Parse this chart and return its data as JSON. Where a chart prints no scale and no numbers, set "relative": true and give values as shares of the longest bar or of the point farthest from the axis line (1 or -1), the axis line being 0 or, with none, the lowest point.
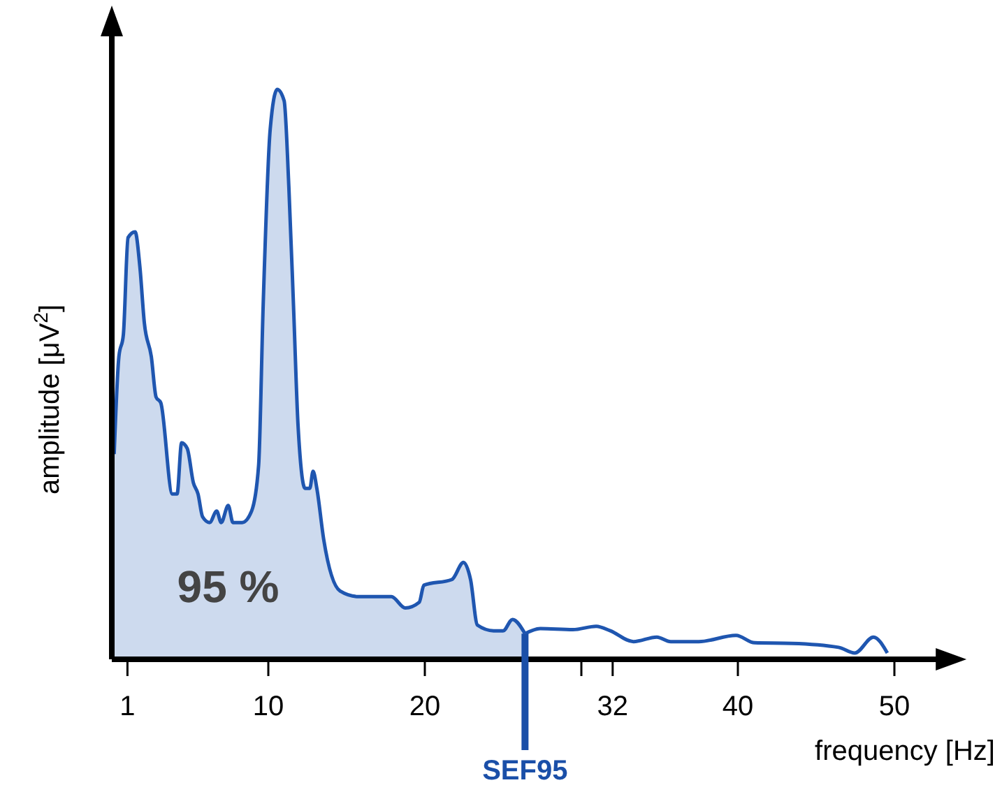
{
  "chart_data": {
    "type": "area",
    "relative": true,
    "xlabel": "frequency [Hz]",
    "ylabel": "amplitude [μV$^{2}$]",
    "xlim": [
      0,
      53
    ],
    "xticks": [
      1,
      10,
      20,
      {
        "value": 30,
        "label": null
      },
      32,
      40,
      50
    ],
    "series": [
      {
        "color": "#1f56b0",
        "x": [
          0.15,
          0.45,
          0.74,
          1.04,
          1.49,
          1.79,
          2.08,
          2.53,
          2.83,
          3.13,
          3.87,
          4.17,
          4.46,
          4.82,
          5.21,
          5.51,
          5.8,
          6.25,
          6.7,
          6.99,
          7.44,
          7.74,
          8.33,
          8.93,
          9.38,
          9.67,
          10.12,
          10.57,
          11.01,
          11.31,
          11.61,
          11.9,
          12.35,
          12.65,
          12.86,
          13.1,
          13.54,
          14.58,
          15.77,
          16.37,
          16.96,
          17.86,
          18.75,
          19.64,
          19.94,
          21.73,
          22.47,
          22.92,
          23.36,
          24.4,
          25,
          25.6,
          26.4
        ],
        "values": [
          0.36,
          0.53,
          0.57,
          0.74,
          0.75,
          0.69,
          0.59,
          0.53,
          0.46,
          0.45,
          0.29,
          0.29,
          0.38,
          0.37,
          0.31,
          0.29,
          0.25,
          0.24,
          0.26,
          0.24,
          0.27,
          0.24,
          0.24,
          0.26,
          0.34,
          0.62,
          0.93,
          1,
          0.98,
          0.83,
          0.62,
          0.41,
          0.3,
          0.3,
          0.33,
          0.3,
          0.21,
          0.12,
          0.11,
          0.11,
          0.11,
          0.11,
          0.09,
          0.1,
          0.13,
          0.14,
          0.17,
          0.14,
          0.06,
          0.05,
          0.05,
          0.07,
          0.045
        ]
      },
      {
        "type": "line",
        "color": "#1f56b0",
        "x": [
          26.4,
          27.38,
          29.46,
          30.95,
          31.85,
          33.33,
          34.82,
          35.71,
          37.5,
          39.88,
          41.07,
          43.45,
          46.43,
          47.47,
          48.66,
          49.55
        ],
        "values": [
          0.045,
          0.054,
          0.052,
          0.058,
          0.05,
          0.031,
          0.039,
          0.031,
          0.031,
          0.042,
          0.029,
          0.028,
          0.021,
          0.011,
          0.039,
          0.011
        ]
      }
    ],
    "ref_lines": [
      {
        "axis": "x",
        "value": 26.4,
        "label": "SEF95",
        "color": "#1a4fa8"
      }
    ],
    "annotations": [
      "95 %"
    ]
  }
}
